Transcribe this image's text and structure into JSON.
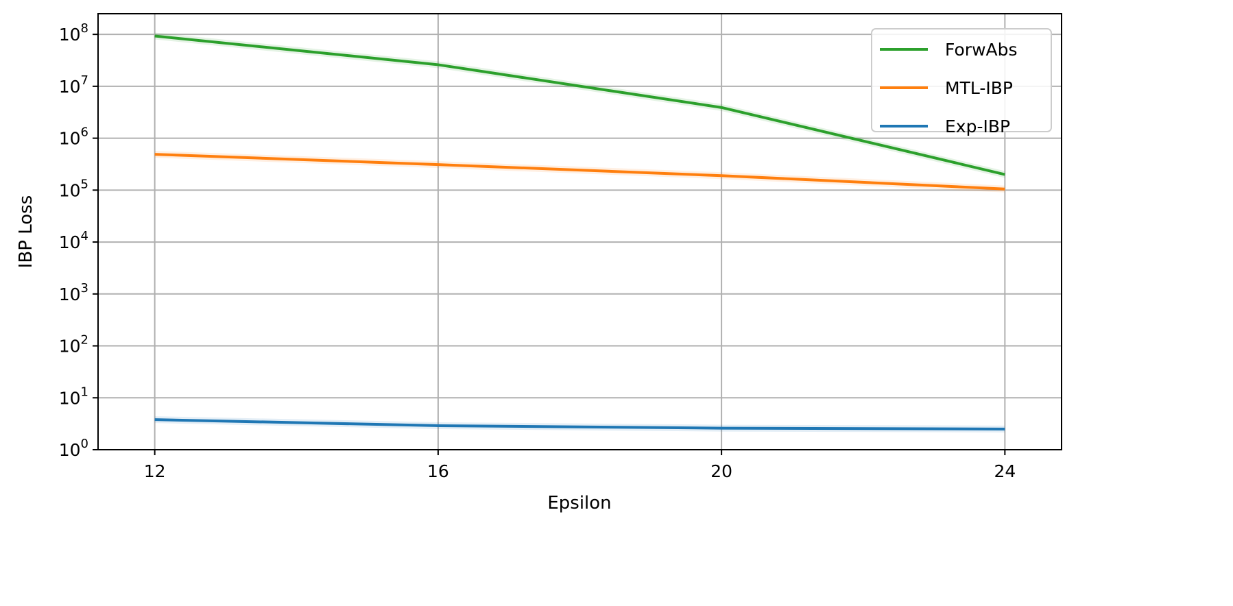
{
  "chart_data": {
    "type": "line",
    "title": "",
    "xlabel": "Epsilon",
    "ylabel": "IBP Loss",
    "x": [
      12,
      16,
      20,
      24
    ],
    "xticks": [
      "12",
      "16",
      "20",
      "24"
    ],
    "xlim": [
      11.2,
      24.8
    ],
    "yscale": "log",
    "ylim": [
      1,
      250000000
    ],
    "yticks": [
      "10^0",
      "10^1",
      "10^2",
      "10^3",
      "10^4",
      "10^5",
      "10^6",
      "10^7",
      "10^8"
    ],
    "grid": true,
    "legend_position": "top-right",
    "series": [
      {
        "name": "ForwAbs",
        "color": "#2ca02c",
        "values": [
          93000000,
          26000000,
          3900000,
          200000
        ]
      },
      {
        "name": "MTL-IBP",
        "color": "#ff7f0e",
        "values": [
          490000,
          310000,
          190000,
          105000
        ]
      },
      {
        "name": "Exp-IBP",
        "color": "#1f77b4",
        "values": [
          3.8,
          2.9,
          2.6,
          2.5
        ]
      }
    ]
  }
}
